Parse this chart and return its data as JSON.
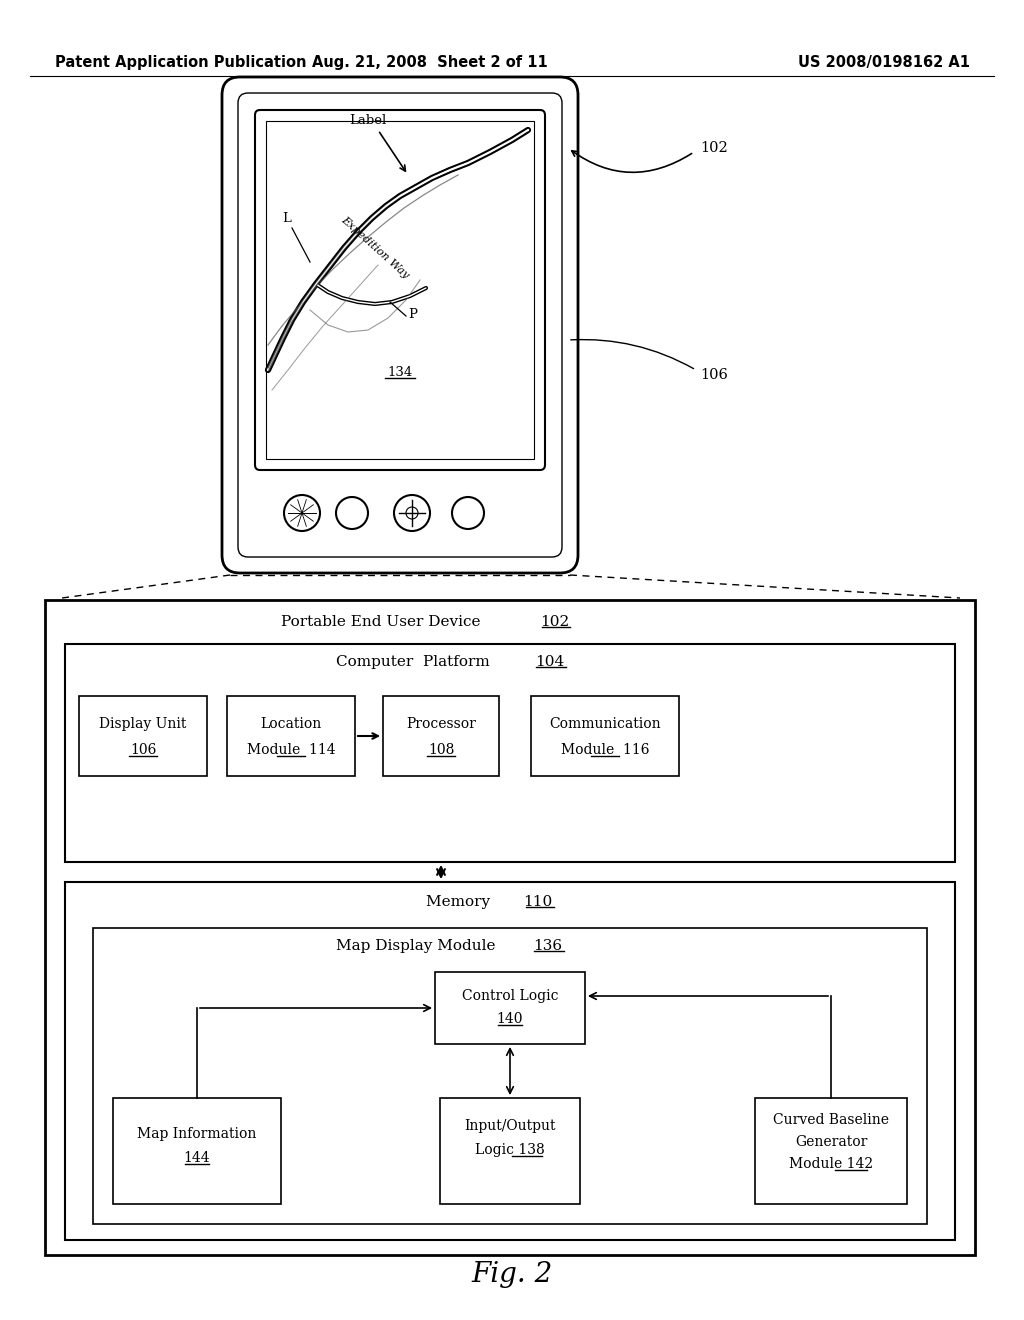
{
  "header_left": "Patent Application Publication",
  "header_mid": "Aug. 21, 2008  Sheet 2 of 11",
  "header_right": "US 2008/0198162 A1",
  "fig_label": "Fig. 2",
  "bg_color": "#ffffff"
}
